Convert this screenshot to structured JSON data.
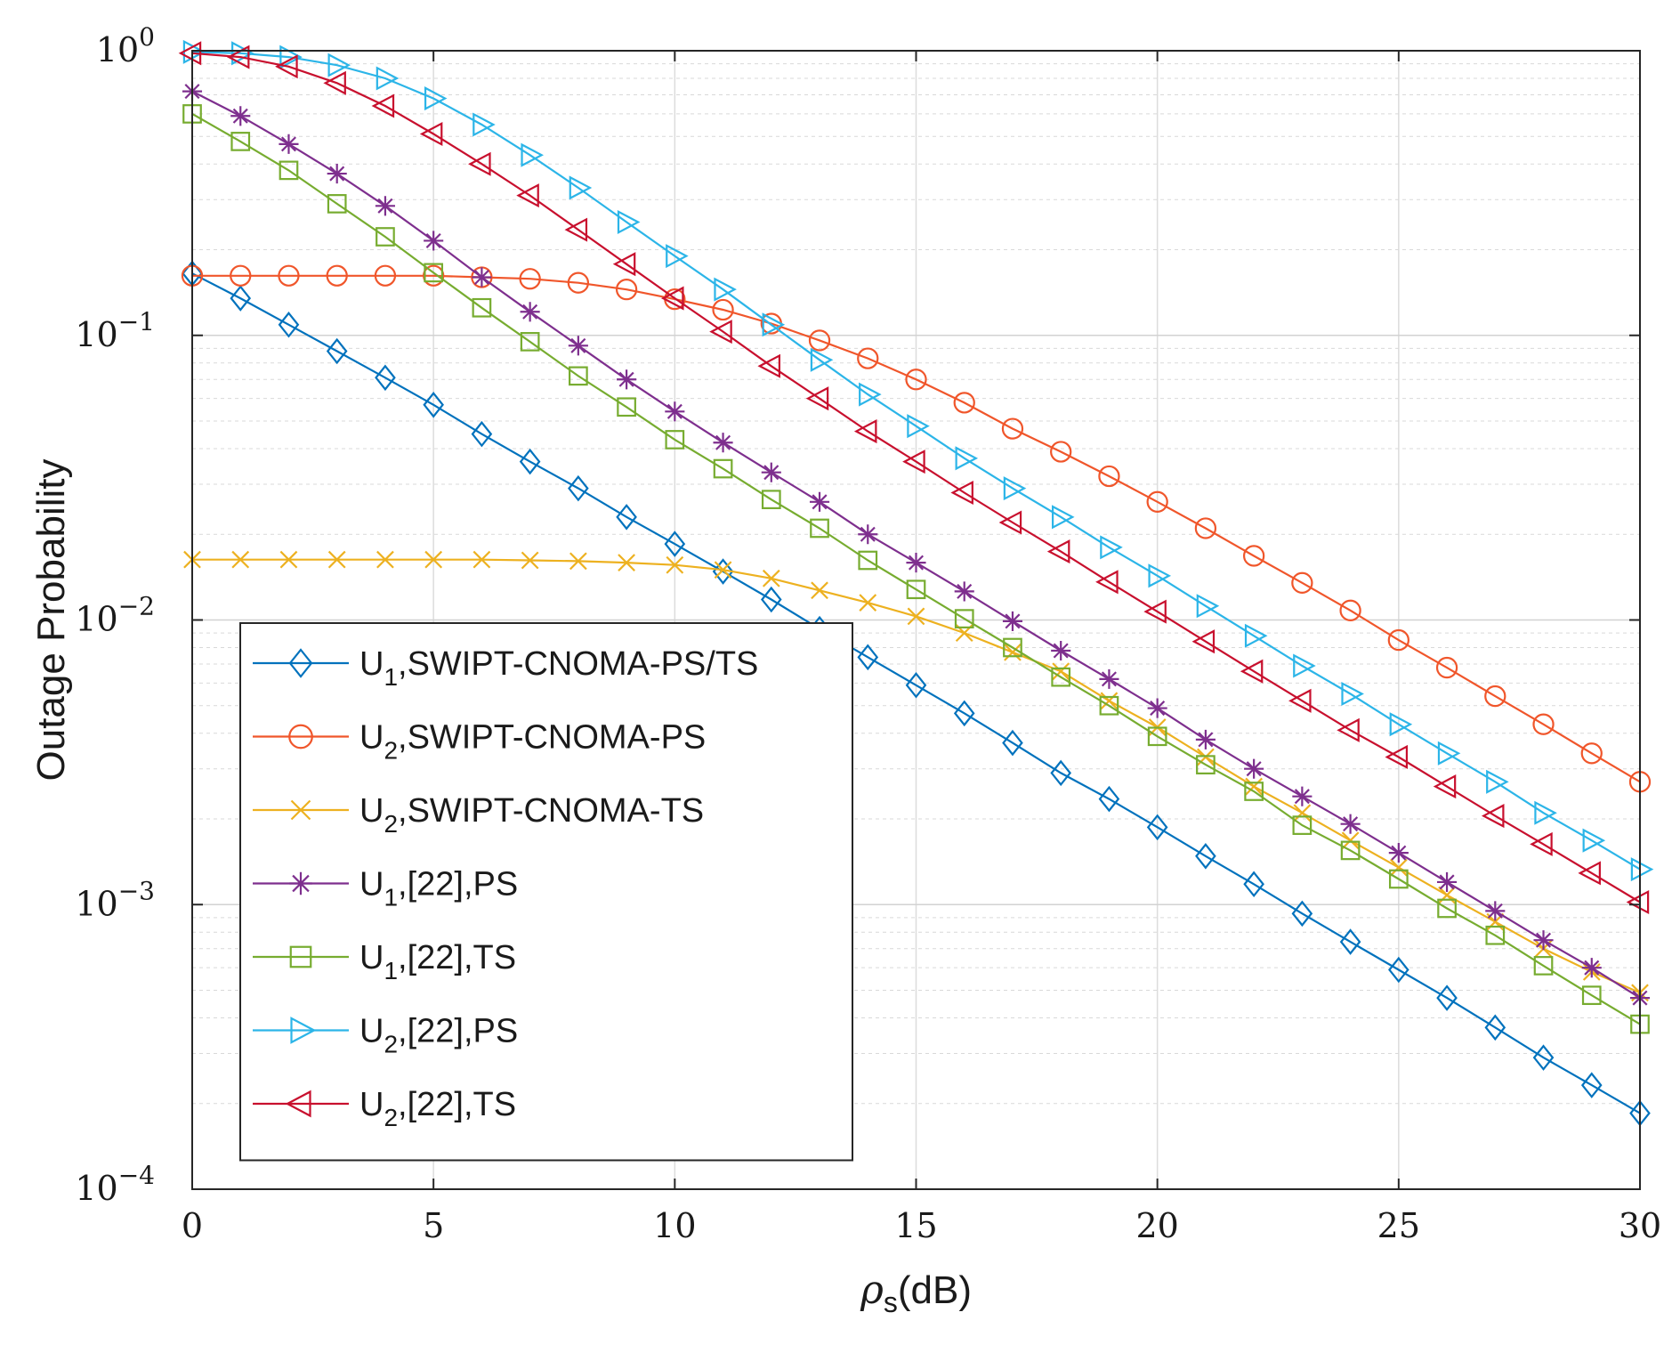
{
  "chart_data": {
    "type": "line",
    "title": "",
    "xlabel_symbol": "ρ",
    "xlabel_sub": "s",
    "xlabel_unit": "(dB)",
    "ylabel": "Outage Probability",
    "xlim": [
      0,
      30
    ],
    "ylim": [
      0.0001,
      1
    ],
    "yscale": "log",
    "grid": true,
    "legend_position": "lower-left",
    "x_ticks": [
      "0",
      "5",
      "10",
      "15",
      "20",
      "25",
      "30"
    ],
    "y_ticks": [
      {
        "base": "10",
        "exp": "0"
      },
      {
        "base": "10",
        "exp": "−1"
      },
      {
        "base": "10",
        "exp": "−2"
      },
      {
        "base": "10",
        "exp": "−3"
      },
      {
        "base": "10",
        "exp": "−4"
      }
    ],
    "x": [
      0,
      1,
      2,
      3,
      4,
      5,
      6,
      7,
      8,
      9,
      10,
      11,
      12,
      13,
      14,
      15,
      16,
      17,
      18,
      19,
      20,
      21,
      22,
      23,
      24,
      25,
      26,
      27,
      28,
      29,
      30
    ],
    "series": [
      {
        "name": "U1 SWIPT-CNOMA-PS/TS",
        "label_main": "U",
        "label_sub": "1",
        "label_rest": ",SWIPT-CNOMA-PS/TS",
        "color": "#0072BD",
        "marker": "diamond",
        "values": [
          0.165,
          0.135,
          0.109,
          0.088,
          0.071,
          0.057,
          0.045,
          0.036,
          0.029,
          0.023,
          0.0185,
          0.0148,
          0.0118,
          0.0093,
          0.0074,
          0.0059,
          0.0047,
          0.0037,
          0.0029,
          0.00235,
          0.00187,
          0.00148,
          0.00118,
          0.00093,
          0.00074,
          0.00059,
          0.00047,
          0.00037,
          0.00029,
          0.000232,
          0.000185
        ]
      },
      {
        "name": "U2 SWIPT-CNOMA-PS",
        "label_main": "U",
        "label_sub": "2",
        "label_rest": ",SWIPT-CNOMA-PS",
        "color": "#F0562B",
        "marker": "circle",
        "values": [
          0.162,
          0.162,
          0.162,
          0.162,
          0.162,
          0.162,
          0.16,
          0.158,
          0.153,
          0.145,
          0.134,
          0.123,
          0.11,
          0.096,
          0.083,
          0.07,
          0.058,
          0.047,
          0.039,
          0.032,
          0.026,
          0.021,
          0.0168,
          0.0135,
          0.0108,
          0.0085,
          0.0068,
          0.0054,
          0.0043,
          0.0034,
          0.0027
        ]
      },
      {
        "name": "U2 SWIPT-CNOMA-TS",
        "label_main": "U",
        "label_sub": "2",
        "label_rest": ",SWIPT-CNOMA-TS",
        "color": "#EDB120",
        "marker": "x",
        "values": [
          0.0163,
          0.0163,
          0.0163,
          0.0163,
          0.0163,
          0.0163,
          0.0163,
          0.0162,
          0.0161,
          0.0159,
          0.0156,
          0.015,
          0.014,
          0.0127,
          0.0115,
          0.0103,
          0.009,
          0.0077,
          0.0066,
          0.0052,
          0.0042,
          0.0033,
          0.0026,
          0.0021,
          0.00168,
          0.00135,
          0.00108,
          0.00087,
          0.0007,
          0.00058,
          0.00049
        ]
      },
      {
        "name": "U1 [22] PS",
        "label_main": "U",
        "label_sub": "1",
        "label_rest": ",[22],PS",
        "color": "#7E2F8E",
        "marker": "asterisk",
        "values": [
          0.72,
          0.59,
          0.47,
          0.37,
          0.285,
          0.215,
          0.16,
          0.121,
          0.092,
          0.07,
          0.054,
          0.042,
          0.033,
          0.026,
          0.02,
          0.0159,
          0.0126,
          0.0099,
          0.0078,
          0.0062,
          0.0049,
          0.0038,
          0.003,
          0.0024,
          0.00192,
          0.00152,
          0.0012,
          0.00095,
          0.00075,
          0.0006,
          0.00047
        ]
      },
      {
        "name": "U1 [22] TS",
        "label_main": "U",
        "label_sub": "1",
        "label_rest": ",[22],TS",
        "color": "#77AC30",
        "marker": "square",
        "values": [
          0.6,
          0.48,
          0.38,
          0.29,
          0.222,
          0.166,
          0.125,
          0.095,
          0.072,
          0.056,
          0.043,
          0.034,
          0.0265,
          0.021,
          0.0162,
          0.0128,
          0.0101,
          0.008,
          0.0063,
          0.005,
          0.0039,
          0.0031,
          0.0025,
          0.0019,
          0.00155,
          0.00123,
          0.00097,
          0.00078,
          0.00061,
          0.00048,
          0.00038
        ]
      },
      {
        "name": "U2 [22] PS",
        "label_main": "U",
        "label_sub": "2",
        "label_rest": ",[22],PS",
        "color": "#2CB5E8",
        "marker": "triangle-right",
        "values": [
          0.99,
          0.98,
          0.95,
          0.89,
          0.8,
          0.68,
          0.55,
          0.43,
          0.33,
          0.25,
          0.19,
          0.145,
          0.109,
          0.082,
          0.062,
          0.048,
          0.037,
          0.029,
          0.023,
          0.018,
          0.0143,
          0.0112,
          0.0088,
          0.0069,
          0.0055,
          0.0043,
          0.0034,
          0.0027,
          0.0021,
          0.00168,
          0.00133
        ]
      },
      {
        "name": "U2 [22] TS",
        "label_main": "U",
        "label_sub": "2",
        "label_rest": ",[22],TS",
        "color": "#C8102E",
        "marker": "triangle-left",
        "values": [
          0.98,
          0.95,
          0.88,
          0.77,
          0.64,
          0.51,
          0.4,
          0.31,
          0.235,
          0.178,
          0.135,
          0.103,
          0.078,
          0.06,
          0.046,
          0.036,
          0.028,
          0.022,
          0.0174,
          0.0136,
          0.0107,
          0.0084,
          0.0066,
          0.0052,
          0.0041,
          0.0033,
          0.0026,
          0.00205,
          0.00163,
          0.00129,
          0.00102
        ]
      }
    ]
  }
}
